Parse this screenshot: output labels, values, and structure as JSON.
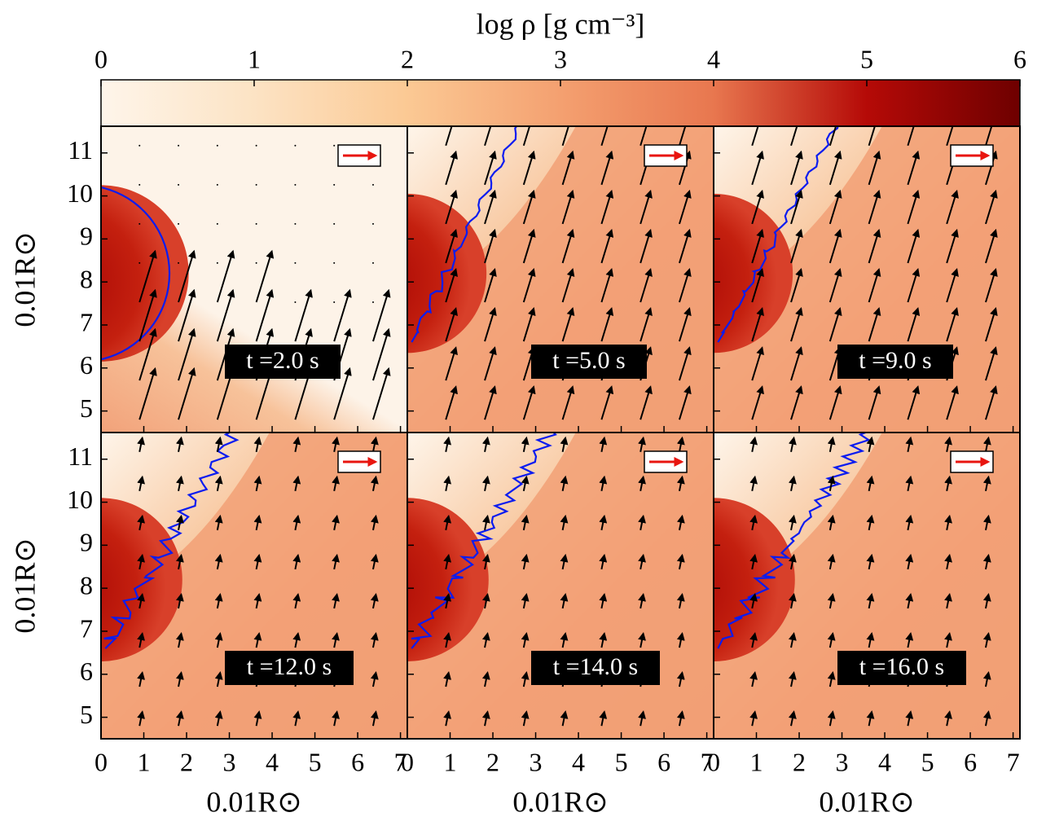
{
  "chart_data": {
    "type": "field",
    "colorbar": {
      "label": "log ρ [g cm⁻³]",
      "lim": [
        0,
        6
      ],
      "ticks": [
        0,
        1,
        2,
        3,
        4,
        5,
        6
      ],
      "colors": [
        "#fef5ea",
        "#fce3c4",
        "#fbc994",
        "#f4a070",
        "#e8774f",
        "#b50a07",
        "#6e0000"
      ]
    },
    "xlabel": "0.01R⊙",
    "ylabel": "0.01R⊙",
    "xlim": [
      0,
      7.16
    ],
    "ylim": [
      4.5,
      11.62
    ],
    "xticks": [
      0,
      1,
      2,
      3,
      4,
      5,
      6,
      7
    ],
    "yticks": [
      5,
      6,
      7,
      8,
      9,
      10,
      11
    ],
    "contour_color": "#0a1cf0",
    "arrow_color": "#000000",
    "reference_arrow_color": "#e8150f",
    "panels": [
      {
        "label": "t =2.0 s"
      },
      {
        "label": "t =5.0 s"
      },
      {
        "label": "t =9.0 s"
      },
      {
        "label": "t =12.0 s"
      },
      {
        "label": "t =14.0 s"
      },
      {
        "label": "t =16.0 s"
      }
    ]
  }
}
